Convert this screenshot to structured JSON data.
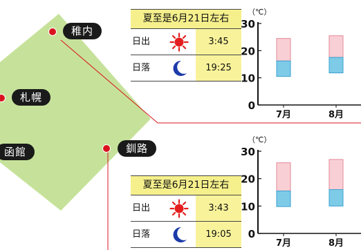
{
  "colors": {
    "map_land": "#c6e29a",
    "pin": "#d9131e",
    "label_bg": "#1a1a1a",
    "panel_hl": "#f5f08c",
    "temp_high": "#f8cfd4",
    "temp_low": "#7ecbe8"
  },
  "cities": [
    "稚内",
    "札幌",
    "函館",
    "釧路"
  ],
  "panels": [
    {
      "title": "夏至是6月21日左右",
      "rows": [
        {
          "label": "日出",
          "icon": "sun-icon",
          "time": "3:45"
        },
        {
          "label": "日落",
          "icon": "moon-icon",
          "time": "19:25"
        }
      ]
    },
    {
      "title": "夏至是6月21日左右",
      "rows": [
        {
          "label": "日出",
          "icon": "sun-icon",
          "time": "3:43"
        },
        {
          "label": "日落",
          "icon": "moon-icon",
          "time": "19:05"
        }
      ]
    }
  ],
  "chart_data": [
    {
      "type": "bar",
      "unit": "（℃）",
      "categories": [
        "7月",
        "8月"
      ],
      "yticks": [
        "30",
        "20",
        "10",
        "0"
      ],
      "ylim": [
        0,
        30
      ],
      "series": [
        {
          "low": [
            10.5,
            11.8
          ],
          "mid": [
            16.2,
            17.5
          ],
          "high": [
            24.5,
            25.5
          ]
        }
      ]
    },
    {
      "type": "bar",
      "unit": "（℃）",
      "categories": [
        "7月",
        "8月"
      ],
      "yticks": [
        "30",
        "20",
        "10",
        "0"
      ],
      "ylim": [
        0,
        30
      ],
      "series": [
        {
          "low": [
            9.8,
            10.0
          ],
          "mid": [
            15.5,
            16.0
          ],
          "high": [
            25.8,
            27.0
          ]
        }
      ]
    }
  ]
}
